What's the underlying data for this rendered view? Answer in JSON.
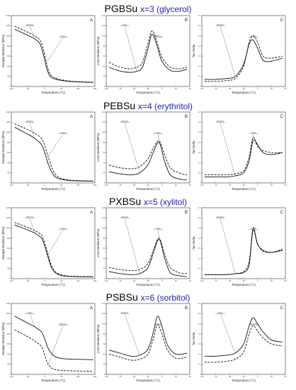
{
  "rows": [
    {
      "prefix": "PGBSu",
      "suffix": "x=3 (glycerol)"
    },
    {
      "prefix": "PEBSu",
      "suffix": "x=4 (erythritol)"
    },
    {
      "prefix": "PXBSu",
      "suffix": "x=5 (xylitol)"
    },
    {
      "prefix": "PSBSu",
      "suffix": "x=6 (sorbitol)"
    }
  ],
  "colors": {
    "line": "#111111",
    "axis": "#333333",
    "title_suffix": "#1f1fa8"
  },
  "chart_data": [
    {
      "type": "line",
      "row": 0,
      "panel": "A",
      "xlabel": "Temperature (°C)",
      "ylabel": "Storage Modulus (MPa)",
      "xlim": [
        -100,
        150
      ],
      "ylim": [
        0,
        1400
      ],
      "xticks": [
        -100,
        -50,
        0,
        50,
        100,
        150
      ],
      "yticks": [
        0,
        200,
        400,
        600,
        800,
        1000,
        1200,
        1400
      ],
      "grid": false,
      "series": [
        {
          "style": "solid",
          "x": [
            -90,
            -70,
            -50,
            -30,
            -15,
            -5,
            5,
            15,
            30,
            60,
            100,
            145
          ],
          "y": [
            1130,
            1070,
            1010,
            940,
            850,
            660,
            380,
            210,
            150,
            110,
            90,
            80
          ]
        },
        {
          "style": "dashed",
          "x": [
            -90,
            -70,
            -50,
            -30,
            -15,
            -5,
            5,
            15,
            30,
            60,
            100,
            145
          ],
          "y": [
            1190,
            1130,
            1070,
            1000,
            920,
            760,
            470,
            260,
            170,
            120,
            95,
            85
          ]
        }
      ],
      "annotations": [
        "100 kGy",
        "0 kGy"
      ]
    },
    {
      "type": "line",
      "row": 0,
      "panel": "B",
      "xlabel": "Temperature (°C)",
      "ylabel": "Loss Modulus (MPa)",
      "xlim": [
        -100,
        50
      ],
      "ylim": [
        0,
        140
      ],
      "xticks": [
        -100,
        -75,
        -50,
        -25,
        0,
        25,
        50
      ],
      "yticks": [
        0,
        20,
        40,
        60,
        80,
        100,
        120,
        140
      ],
      "grid": false,
      "series": [
        {
          "style": "solid",
          "x": [
            -95,
            -80,
            -60,
            -45,
            -35,
            -25,
            -18,
            -10,
            0,
            15,
            30,
            45
          ],
          "y": [
            38,
            32,
            28,
            30,
            38,
            75,
            103,
            85,
            50,
            32,
            30,
            34
          ]
        },
        {
          "style": "dashed",
          "x": [
            -95,
            -80,
            -60,
            -45,
            -35,
            -25,
            -18,
            -10,
            0,
            15,
            30,
            45
          ],
          "y": [
            48,
            40,
            35,
            38,
            48,
            85,
            110,
            92,
            58,
            38,
            35,
            38
          ]
        }
      ],
      "annotations": [
        "0 kGy",
        "100 kGy"
      ]
    },
    {
      "type": "line",
      "row": 0,
      "panel": "C",
      "xlabel": "Temperature (°C)",
      "ylabel": "Tan Delta",
      "xlim": [
        -100,
        50
      ],
      "ylim": [
        0,
        0.7
      ],
      "xticks": [
        -100,
        -75,
        -50,
        -25,
        0,
        25,
        50
      ],
      "yticks": [
        0,
        0.1,
        0.2,
        0.3,
        0.4,
        0.5,
        0.6,
        0.7
      ],
      "grid": false,
      "series": [
        {
          "style": "solid",
          "x": [
            -95,
            -75,
            -55,
            -40,
            -25,
            -15,
            -8,
            0,
            10,
            25,
            45
          ],
          "y": [
            0.07,
            0.07,
            0.08,
            0.1,
            0.22,
            0.42,
            0.46,
            0.38,
            0.26,
            0.25,
            0.28
          ]
        },
        {
          "style": "dashed",
          "x": [
            -95,
            -75,
            -55,
            -40,
            -25,
            -15,
            -8,
            0,
            10,
            25,
            45
          ],
          "y": [
            0.05,
            0.05,
            0.06,
            0.08,
            0.2,
            0.44,
            0.5,
            0.44,
            0.3,
            0.28,
            0.3
          ]
        }
      ],
      "annotations": [
        "100 kGy",
        "0 kGy"
      ]
    },
    {
      "type": "line",
      "row": 1,
      "panel": "A",
      "xlabel": "Temperature (°C)",
      "ylabel": "Storage Modulus (MPa)",
      "xlim": [
        -100,
        150
      ],
      "ylim": [
        0,
        1400
      ],
      "xticks": [
        -100,
        -50,
        0,
        50,
        100,
        150
      ],
      "yticks": [
        0,
        200,
        400,
        600,
        800,
        1000,
        1200,
        1400
      ],
      "grid": false,
      "series": [
        {
          "style": "solid",
          "x": [
            -90,
            -70,
            -50,
            -30,
            -10,
            0,
            10,
            25,
            40,
            70,
            110,
            145
          ],
          "y": [
            1100,
            1030,
            960,
            880,
            760,
            600,
            380,
            170,
            90,
            50,
            40,
            35
          ]
        },
        {
          "style": "dashed",
          "x": [
            -90,
            -70,
            -50,
            -30,
            -10,
            0,
            10,
            25,
            40,
            70,
            110,
            145
          ],
          "y": [
            1170,
            1110,
            1050,
            980,
            880,
            740,
            520,
            250,
            120,
            60,
            45,
            40
          ]
        }
      ],
      "annotations": [
        "100 kGy",
        "0 kGy"
      ]
    },
    {
      "type": "line",
      "row": 1,
      "panel": "B",
      "xlabel": "Temperature (°C)",
      "ylabel": "Loss Modulus (MPa)",
      "xlim": [
        -100,
        50
      ],
      "ylim": [
        0,
        140
      ],
      "xticks": [
        -100,
        -75,
        -50,
        -25,
        0,
        25,
        50
      ],
      "yticks": [
        0,
        20,
        40,
        60,
        80,
        100,
        120,
        140
      ],
      "grid": false,
      "series": [
        {
          "style": "solid",
          "x": [
            -95,
            -75,
            -55,
            -40,
            -25,
            -15,
            -5,
            5,
            15,
            30,
            45
          ],
          "y": [
            22,
            18,
            16,
            20,
            36,
            62,
            80,
            42,
            16,
            8,
            6
          ]
        },
        {
          "style": "dashed",
          "x": [
            -95,
            -75,
            -55,
            -40,
            -25,
            -15,
            -5,
            5,
            15,
            30,
            45
          ],
          "y": [
            35,
            30,
            28,
            32,
            48,
            70,
            83,
            55,
            30,
            20,
            16
          ]
        }
      ],
      "annotations": [
        "100 kGy",
        "0 kGy"
      ]
    },
    {
      "type": "line",
      "row": 1,
      "panel": "C",
      "xlabel": "Temperature (°C)",
      "ylabel": "Tan Delta",
      "xlim": [
        -100,
        50
      ],
      "ylim": [
        0,
        0.7
      ],
      "xticks": [
        -100,
        -75,
        -50,
        -25,
        0,
        25,
        50
      ],
      "yticks": [
        0,
        0.1,
        0.2,
        0.3,
        0.4,
        0.5,
        0.6,
        0.7
      ],
      "grid": false,
      "series": [
        {
          "style": "solid",
          "x": [
            -95,
            -75,
            -55,
            -40,
            -25,
            -15,
            -8,
            0,
            10,
            25,
            45
          ],
          "y": [
            0.06,
            0.06,
            0.06,
            0.07,
            0.1,
            0.22,
            0.42,
            0.38,
            0.3,
            0.28,
            0.3
          ]
        },
        {
          "style": "dashed",
          "x": [
            -95,
            -75,
            -55,
            -40,
            -25,
            -15,
            -8,
            0,
            10,
            25,
            45
          ],
          "y": [
            0.08,
            0.08,
            0.08,
            0.09,
            0.12,
            0.26,
            0.45,
            0.36,
            0.32,
            0.3,
            0.3
          ]
        }
      ],
      "annotations": [
        "100 kGy",
        "0 kGy"
      ]
    },
    {
      "type": "line",
      "row": 2,
      "panel": "A",
      "xlabel": "Temperature (°C)",
      "ylabel": "Storage Modulus (MPa)",
      "xlim": [
        -100,
        150
      ],
      "ylim": [
        0,
        1400
      ],
      "xticks": [
        -100,
        -50,
        0,
        50,
        100,
        150
      ],
      "yticks": [
        0,
        200,
        400,
        600,
        800,
        1000,
        1200,
        1400
      ],
      "grid": false,
      "series": [
        {
          "style": "solid",
          "x": [
            -90,
            -70,
            -50,
            -30,
            -10,
            0,
            10,
            20,
            35,
            60,
            100,
            145
          ],
          "y": [
            1060,
            1010,
            960,
            900,
            800,
            640,
            420,
            220,
            100,
            50,
            40,
            35
          ]
        },
        {
          "style": "dashed",
          "x": [
            -90,
            -70,
            -50,
            -30,
            -10,
            0,
            10,
            20,
            35,
            60,
            100,
            145
          ],
          "y": [
            1110,
            1060,
            1010,
            950,
            860,
            700,
            480,
            260,
            120,
            60,
            45,
            40
          ]
        }
      ],
      "annotations": [
        "100 kGy",
        "0 kGy"
      ]
    },
    {
      "type": "line",
      "row": 2,
      "panel": "B",
      "xlabel": "Temperature (°C)",
      "ylabel": "Loss Modulus (MPa)",
      "xlim": [
        -100,
        50
      ],
      "ylim": [
        0,
        140
      ],
      "xticks": [
        -100,
        -75,
        -50,
        -25,
        0,
        25,
        50
      ],
      "yticks": [
        0,
        20,
        40,
        60,
        80,
        100,
        120,
        140
      ],
      "grid": false,
      "series": [
        {
          "style": "solid",
          "x": [
            -95,
            -75,
            -55,
            -40,
            -25,
            -15,
            -5,
            5,
            15,
            30,
            45
          ],
          "y": [
            14,
            10,
            8,
            10,
            22,
            52,
            78,
            40,
            12,
            6,
            4
          ]
        },
        {
          "style": "dashed",
          "x": [
            -95,
            -75,
            -55,
            -40,
            -25,
            -15,
            -5,
            5,
            15,
            30,
            45
          ],
          "y": [
            22,
            18,
            16,
            18,
            30,
            58,
            80,
            48,
            22,
            12,
            10
          ]
        }
      ],
      "annotations": [
        "100 kGy",
        "0 kGy"
      ]
    },
    {
      "type": "line",
      "row": 2,
      "panel": "C",
      "xlabel": "Temperature (°C)",
      "ylabel": "Tan Delta",
      "xlim": [
        -100,
        50
      ],
      "ylim": [
        0,
        0.7
      ],
      "xticks": [
        -100,
        -75,
        -50,
        -25,
        0,
        25,
        50
      ],
      "yticks": [
        0,
        0.1,
        0.2,
        0.3,
        0.4,
        0.5,
        0.6,
        0.7
      ],
      "grid": false,
      "series": [
        {
          "style": "solid",
          "x": [
            -95,
            -75,
            -55,
            -40,
            -25,
            -15,
            -8,
            0,
            10,
            25,
            45
          ],
          "y": [
            0.04,
            0.04,
            0.04,
            0.05,
            0.06,
            0.14,
            0.48,
            0.34,
            0.28,
            0.26,
            0.28
          ]
        },
        {
          "style": "dashed",
          "x": [
            -95,
            -75,
            -55,
            -40,
            -25,
            -15,
            -8,
            0,
            10,
            25,
            45
          ],
          "y": [
            0.04,
            0.04,
            0.04,
            0.05,
            0.07,
            0.17,
            0.5,
            0.35,
            0.27,
            0.26,
            0.29
          ]
        }
      ],
      "annotations": [
        "100 kGy",
        "0 kGy"
      ]
    },
    {
      "type": "line",
      "row": 3,
      "panel": "A",
      "xlabel": "Temperature (°C)",
      "ylabel": "Storage Modulus (MPa)",
      "xlim": [
        -100,
        150
      ],
      "ylim": [
        0,
        1400
      ],
      "xticks": [
        -100,
        -50,
        0,
        50,
        100,
        150
      ],
      "yticks": [
        0,
        200,
        400,
        600,
        800,
        1000,
        1200,
        1400
      ],
      "grid": false,
      "series": [
        {
          "style": "solid",
          "x": [
            -90,
            -70,
            -50,
            -30,
            -10,
            0,
            10,
            25,
            45,
            80,
            120,
            145
          ],
          "y": [
            1150,
            1080,
            1010,
            940,
            840,
            700,
            520,
            380,
            320,
            300,
            295,
            290
          ]
        },
        {
          "style": "dashed",
          "x": [
            -90,
            -70,
            -50,
            -30,
            -10,
            0,
            10,
            25,
            45,
            80,
            120,
            145
          ],
          "y": [
            880,
            810,
            740,
            660,
            550,
            380,
            200,
            110,
            80,
            70,
            65,
            60
          ]
        }
      ],
      "annotations": [
        "0 kGy",
        "100 kGy"
      ]
    },
    {
      "type": "line",
      "row": 3,
      "panel": "B",
      "xlabel": "Temperature (°C)",
      "ylabel": "Loss Modulus (MPa)",
      "xlim": [
        -100,
        50
      ],
      "ylim": [
        0,
        140
      ],
      "xticks": [
        -100,
        -75,
        -50,
        -25,
        0,
        25,
        50
      ],
      "yticks": [
        0,
        20,
        40,
        60,
        80,
        100,
        120,
        140
      ],
      "grid": false,
      "series": [
        {
          "style": "solid",
          "x": [
            -95,
            -75,
            -55,
            -40,
            -25,
            -15,
            -8,
            0,
            10,
            25,
            45
          ],
          "y": [
            48,
            42,
            36,
            38,
            50,
            85,
            115,
            95,
            58,
            40,
            42
          ]
        },
        {
          "style": "dashed",
          "x": [
            -95,
            -75,
            -55,
            -40,
            -25,
            -15,
            -8,
            0,
            10,
            25,
            45
          ],
          "y": [
            40,
            34,
            28,
            30,
            40,
            72,
            98,
            80,
            48,
            32,
            34
          ]
        }
      ],
      "annotations": [
        "100 kGy",
        "0 kGy"
      ]
    },
    {
      "type": "line",
      "row": 3,
      "panel": "C",
      "xlabel": "Temperature (°C)",
      "ylabel": "Tan Delta",
      "xlim": [
        -100,
        50
      ],
      "ylim": [
        0,
        0.7
      ],
      "xticks": [
        -100,
        -75,
        -50,
        -25,
        0,
        25,
        50
      ],
      "yticks": [
        0,
        0.1,
        0.2,
        0.3,
        0.4,
        0.5,
        0.6,
        0.7
      ],
      "grid": false,
      "series": [
        {
          "style": "solid",
          "x": [
            -95,
            -75,
            -55,
            -40,
            -25,
            -15,
            -8,
            0,
            10,
            25,
            45
          ],
          "y": [
            0.18,
            0.18,
            0.19,
            0.21,
            0.3,
            0.48,
            0.56,
            0.5,
            0.42,
            0.34,
            0.32
          ]
        },
        {
          "style": "dashed",
          "x": [
            -95,
            -75,
            -55,
            -40,
            -25,
            -15,
            -8,
            0,
            10,
            25,
            45
          ],
          "y": [
            0.12,
            0.12,
            0.13,
            0.15,
            0.22,
            0.4,
            0.48,
            0.43,
            0.36,
            0.3,
            0.28
          ]
        }
      ],
      "annotations": [
        "0 kGy",
        "100 kGy"
      ]
    }
  ]
}
